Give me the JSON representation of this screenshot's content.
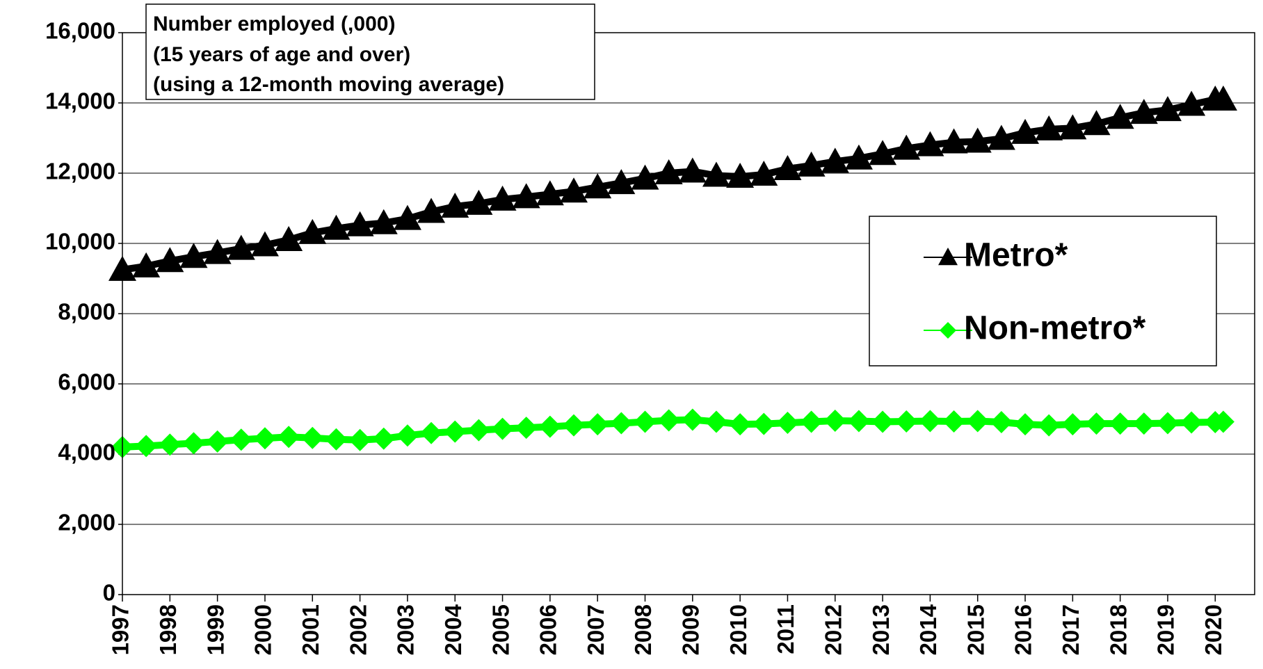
{
  "chart_data": {
    "type": "line",
    "title_lines": [
      "Number employed (,000)",
      "(15 years of age and over)",
      "(using a 12-month moving average)"
    ],
    "x": [
      1997,
      1997.5,
      1998,
      1998.5,
      1999,
      1999.5,
      2000,
      2000.5,
      2001,
      2001.5,
      2002,
      2002.5,
      2003,
      2003.5,
      2004,
      2004.5,
      2005,
      2005.5,
      2006,
      2006.5,
      2007,
      2007.5,
      2008,
      2008.5,
      2009,
      2009.5,
      2010,
      2010.5,
      2011,
      2011.5,
      2012,
      2012.5,
      2013,
      2013.5,
      2014,
      2014.5,
      2015,
      2015.5,
      2016,
      2016.5,
      2017,
      2017.5,
      2018,
      2018.5,
      2019,
      2019.5,
      2020,
      2020.17
    ],
    "series": [
      {
        "name": "Metro*",
        "color": "#000000",
        "marker": "triangle",
        "values": [
          9250,
          9350,
          9500,
          9620,
          9730,
          9850,
          9950,
          10100,
          10300,
          10420,
          10520,
          10580,
          10700,
          10900,
          11050,
          11130,
          11250,
          11320,
          11400,
          11480,
          11600,
          11720,
          11850,
          12000,
          12050,
          11930,
          11900,
          11960,
          12120,
          12220,
          12330,
          12420,
          12550,
          12700,
          12800,
          12880,
          12900,
          12980,
          13150,
          13250,
          13280,
          13400,
          13580,
          13720,
          13800,
          13950,
          14100,
          14100
        ]
      },
      {
        "name": "Non-metro*",
        "color": "#00ff00",
        "marker": "diamond",
        "values": [
          4200,
          4230,
          4270,
          4310,
          4360,
          4410,
          4450,
          4490,
          4460,
          4420,
          4400,
          4440,
          4530,
          4600,
          4640,
          4680,
          4720,
          4750,
          4780,
          4820,
          4850,
          4880,
          4920,
          4960,
          4980,
          4920,
          4850,
          4860,
          4890,
          4920,
          4950,
          4940,
          4920,
          4930,
          4940,
          4930,
          4940,
          4910,
          4850,
          4820,
          4850,
          4870,
          4870,
          4870,
          4880,
          4900,
          4910,
          4920
        ]
      }
    ],
    "xlim": [
      1997,
      2020.83
    ],
    "xticks": [
      1997,
      1998,
      1999,
      2000,
      2001,
      2002,
      2003,
      2004,
      2005,
      2006,
      2007,
      2008,
      2009,
      2010,
      2011,
      2012,
      2013,
      2014,
      2015,
      2016,
      2017,
      2018,
      2019,
      2020
    ],
    "ylim": [
      0,
      16000
    ],
    "yticks": [
      0,
      {
        "value": 2000,
        "label": "2,000"
      },
      {
        "value": 4000,
        "label": "4,000"
      },
      {
        "value": 6000,
        "label": "6,000"
      },
      {
        "value": 8000,
        "label": "8,000"
      },
      {
        "value": 10000,
        "label": "10,000"
      },
      {
        "value": 12000,
        "label": "12,000"
      },
      {
        "value": 14000,
        "label": "14,000"
      },
      {
        "value": 16000,
        "label": "16,000"
      }
    ],
    "grid": true,
    "legend": "right"
  }
}
